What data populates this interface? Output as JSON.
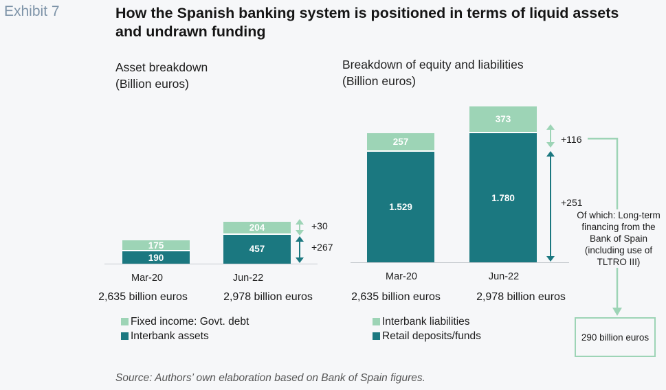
{
  "exhibit_label": "Exhibit 7",
  "title": "How the Spanish banking system is positioned in terms of liquid assets and undrawn funding",
  "colors": {
    "light": "#9dd4b6",
    "dark": "#1b7880",
    "arrow_dark": "#1b7880",
    "arrow_light": "#9dd4b6"
  },
  "chart_data": [
    {
      "type": "bar",
      "stacked": true,
      "title": "Asset breakdown",
      "unit_label": "(Billion euros)",
      "categories": [
        "Mar-20",
        "Jun-22"
      ],
      "totals": [
        "2,635 billion euros",
        "2,978 billion euros"
      ],
      "series": [
        {
          "name": "Interbank assets",
          "values": [
            190,
            457
          ],
          "labels": [
            "190",
            "457"
          ],
          "color": "#1b7880"
        },
        {
          "name": "Fixed income: Govt. debt",
          "values": [
            175,
            204
          ],
          "labels": [
            "175",
            "204"
          ],
          "color": "#9dd4b6"
        }
      ],
      "legend": [
        "Fixed income: Govt. debt",
        "Interbank assets"
      ],
      "legend_placement": "bottom",
      "deltas": {
        "top": "+30",
        "bottom": "+267"
      }
    },
    {
      "type": "bar",
      "stacked": true,
      "title": "Breakdown of equity and liabilities",
      "unit_label": "(Billion euros)",
      "categories": [
        "Mar-20",
        "Jun-22"
      ],
      "totals": [
        "2,635 billion euros",
        "2,978 billion euros"
      ],
      "series": [
        {
          "name": "Retail deposits/funds",
          "values": [
            1529,
            1780
          ],
          "labels": [
            "1.529",
            "1.780"
          ],
          "color": "#1b7880"
        },
        {
          "name": "Interbank liabilities",
          "values": [
            257,
            373
          ],
          "labels": [
            "257",
            "373"
          ],
          "color": "#9dd4b6"
        }
      ],
      "legend": [
        "Interbank liabilities",
        "Retail deposits/funds"
      ],
      "legend_placement": "bottom",
      "deltas": {
        "top": "+116",
        "bottom": "+251"
      }
    }
  ],
  "annotation": {
    "note": "Of which: Long-term financing from the Bank of Spain (including use of TLTRO III)",
    "box": "290 billion euros"
  },
  "source": "Source: Authors’ own elaboration based on Bank of Spain figures."
}
